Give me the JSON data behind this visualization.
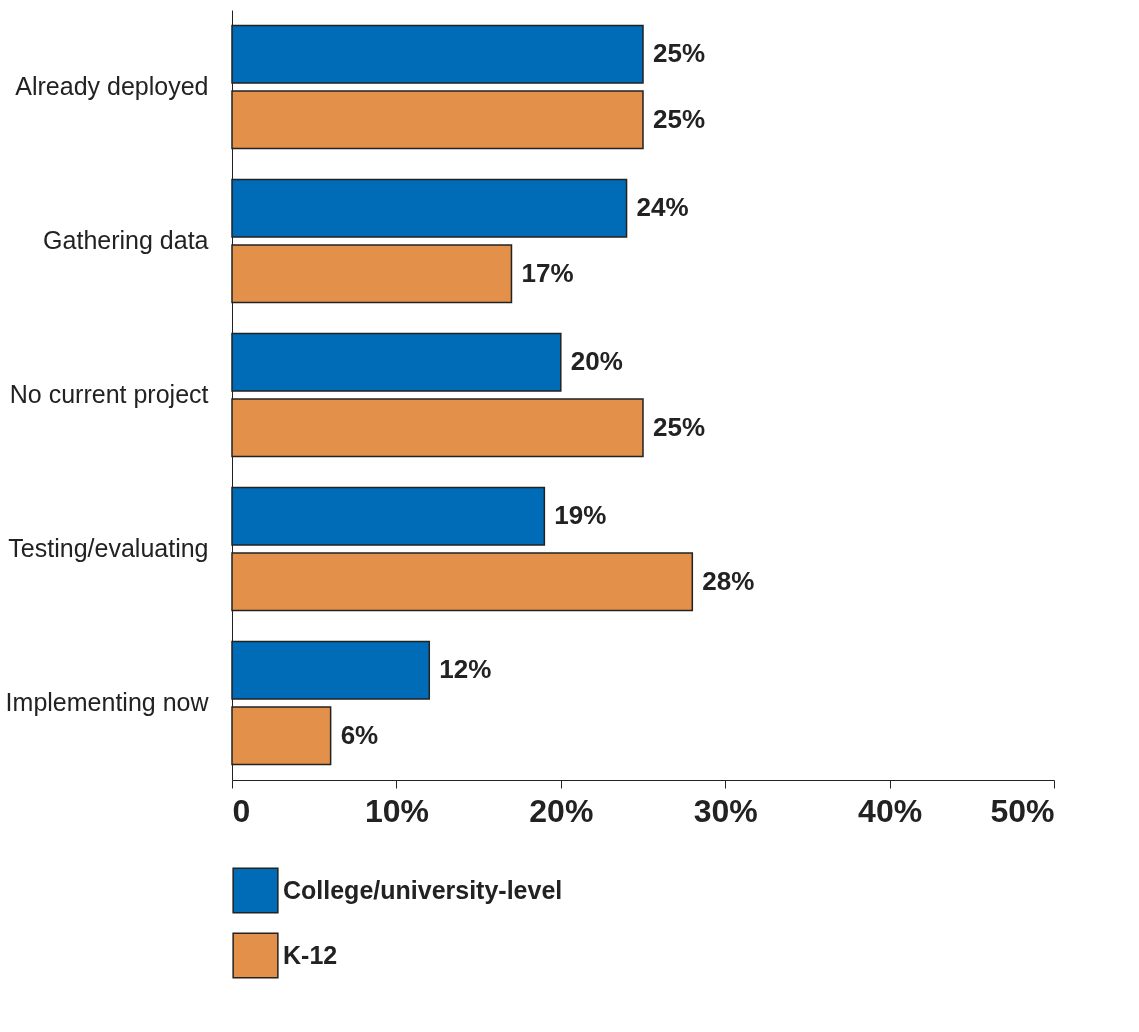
{
  "chart_data": {
    "type": "bar",
    "orientation": "horizontal",
    "categories": [
      "Already deployed",
      "Gathering data",
      "No current project",
      "Testing/evaluating",
      "Implementing now"
    ],
    "series": [
      {
        "name": "College/university-level",
        "color": "#006bb6",
        "values": [
          25,
          24,
          20,
          19,
          12
        ],
        "value_labels": [
          "25%",
          "24%",
          "20%",
          "19%",
          "12%"
        ]
      },
      {
        "name": "K-12",
        "color": "#e2904a",
        "values": [
          25,
          17,
          25,
          28,
          6
        ],
        "value_labels": [
          "25%",
          "17%",
          "25%",
          "28%",
          "6%"
        ]
      }
    ],
    "xlim": [
      0,
      50
    ],
    "xticks": [
      0,
      {
        "value": 10,
        "label": "10%"
      },
      {
        "value": 20,
        "label": "20%"
      },
      {
        "value": 30,
        "label": "30%"
      },
      {
        "value": 40,
        "label": "40%"
      },
      {
        "value": 50,
        "label": "50%"
      }
    ],
    "grid": false,
    "legend": "bottom"
  }
}
